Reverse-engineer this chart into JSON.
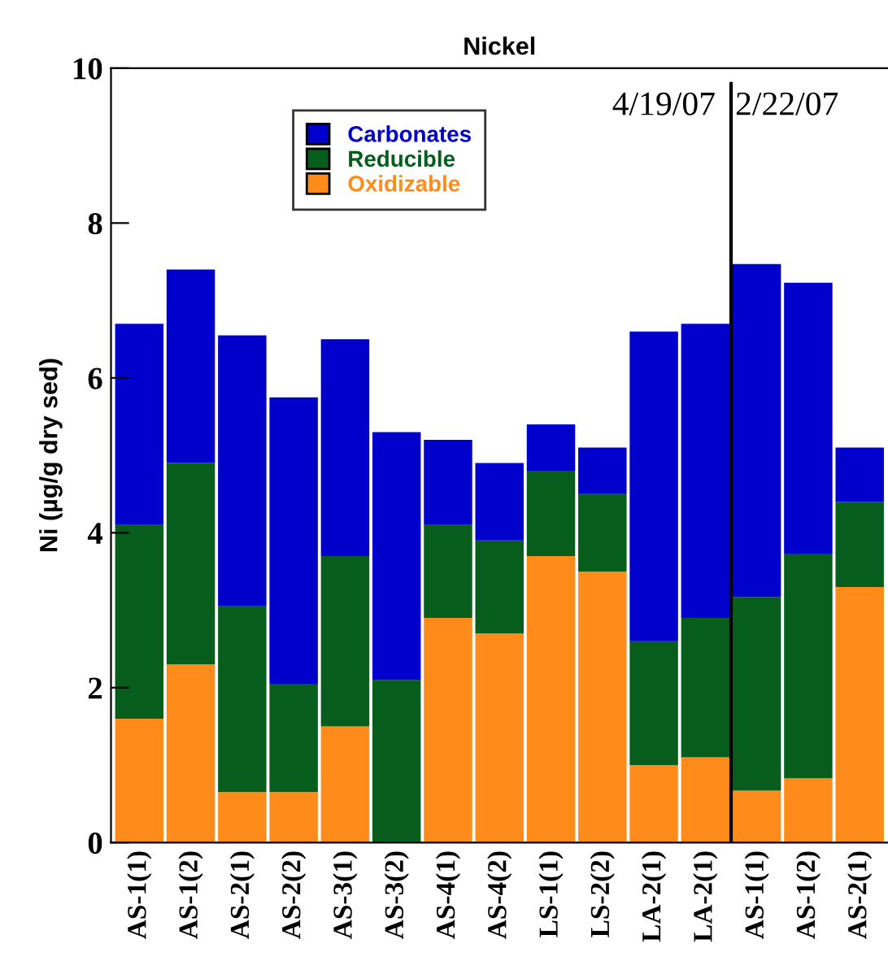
{
  "chart_data": {
    "type": "bar",
    "title": "Nickel",
    "ylabel": "Ni (µg/g dry sed)",
    "stacked": true,
    "categories": [
      "AS-1(1)",
      "AS-1(2)",
      "AS-2(1)",
      "AS-2(2)",
      "AS-3(1)",
      "AS-3(2)",
      "AS-4(1)",
      "AS-4(2)",
      "LS-1(1)",
      "LS-2(2)",
      "LA-2(1)",
      "LA-2(1)",
      "AS-1(1)",
      "AS-1(2)",
      "AS-2(1)"
    ],
    "series": [
      {
        "name": "Oxidizable",
        "color": "#ff8c1a",
        "values": [
          1.6,
          2.3,
          0.65,
          0.65,
          1.5,
          0,
          2.9,
          2.7,
          3.7,
          3.5,
          1.0,
          1.1,
          0.67,
          0.83,
          3.3
        ]
      },
      {
        "name": "Reducible",
        "color": "#075e1c",
        "values": [
          2.5,
          2.6,
          2.4,
          1.4,
          2.2,
          2.1,
          1.2,
          1.2,
          1.1,
          1.0,
          1.6,
          1.8,
          2.5,
          2.9,
          1.1
        ]
      },
      {
        "name": "Carbonates",
        "color": "#0000cc",
        "values": [
          2.6,
          2.5,
          3.5,
          3.7,
          2.8,
          3.2,
          1.1,
          1.0,
          0.6,
          0.6,
          4.0,
          3.8,
          4.3,
          3.5,
          0.7
        ]
      }
    ],
    "ylim": [
      0,
      10
    ],
    "yticks": [
      0,
      2,
      4,
      6,
      8,
      10
    ],
    "grid": false,
    "legend": "top",
    "annotations": [
      "4/19/07",
      "2/22/07"
    ]
  }
}
